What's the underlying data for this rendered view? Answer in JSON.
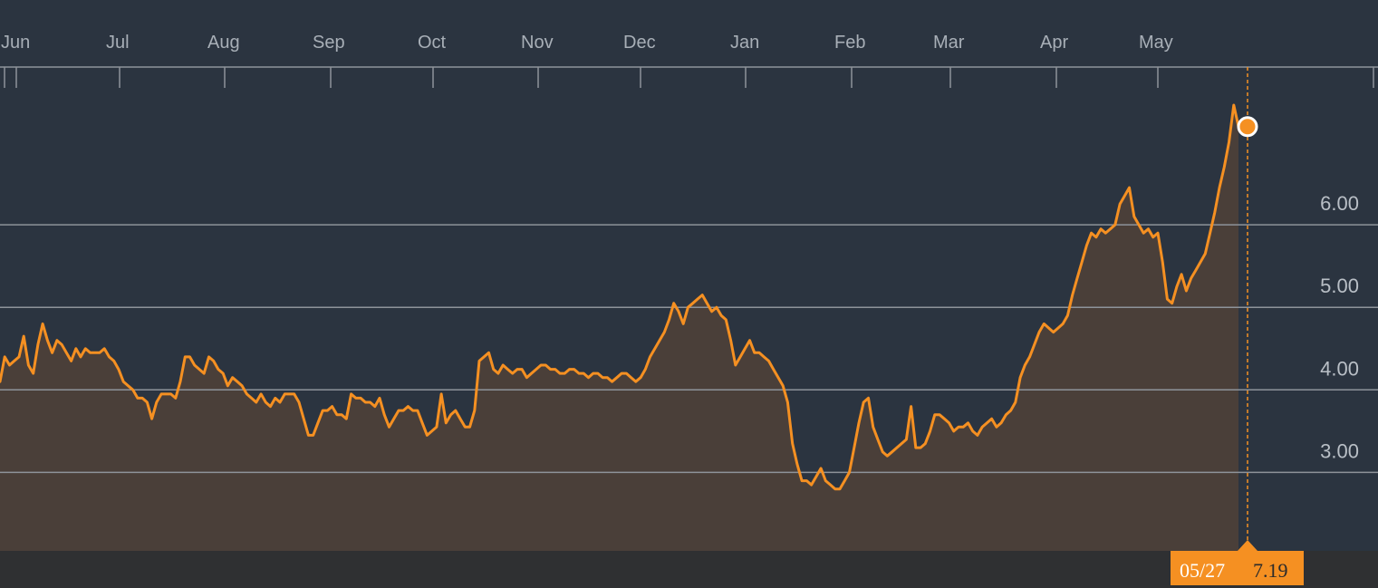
{
  "chart_data": {
    "type": "area",
    "x_tick_labels": [
      "Jun",
      "Jul",
      "Aug",
      "Sep",
      "Oct",
      "Nov",
      "Dec",
      "Jan",
      "Feb",
      "Mar",
      "Apr",
      "May"
    ],
    "y_tick_labels": [
      "6.00",
      "5.00",
      "4.00",
      "3.00"
    ],
    "y_ticks": [
      6,
      5,
      4,
      3
    ],
    "ylim": [
      2.05,
      7.9
    ],
    "grid": true,
    "series": [
      {
        "values": [
          4.1,
          4.4,
          4.3,
          4.35,
          4.4,
          4.65,
          4.3,
          4.2,
          4.55,
          4.8,
          4.6,
          4.45,
          4.6,
          4.55,
          4.45,
          4.35,
          4.5,
          4.4,
          4.5,
          4.45,
          4.45,
          4.45,
          4.5,
          4.4,
          4.35,
          4.25,
          4.1,
          4.05,
          4.0,
          3.9,
          3.9,
          3.85,
          3.65,
          3.85,
          3.95,
          3.95,
          3.95,
          3.9,
          4.1,
          4.4,
          4.4,
          4.3,
          4.25,
          4.2,
          4.4,
          4.35,
          4.25,
          4.2,
          4.05,
          4.15,
          4.1,
          4.05,
          3.95,
          3.9,
          3.85,
          3.95,
          3.85,
          3.8,
          3.9,
          3.85,
          3.95,
          3.95,
          3.95,
          3.85,
          3.65,
          3.45,
          3.45,
          3.6,
          3.75,
          3.75,
          3.8,
          3.7,
          3.7,
          3.65,
          3.95,
          3.9,
          3.9,
          3.85,
          3.85,
          3.8,
          3.9,
          3.7,
          3.55,
          3.65,
          3.75,
          3.75,
          3.8,
          3.75,
          3.75,
          3.6,
          3.45,
          3.5,
          3.55,
          3.95,
          3.6,
          3.7,
          3.75,
          3.65,
          3.55,
          3.55,
          3.75,
          4.35,
          4.4,
          4.45,
          4.25,
          4.2,
          4.3,
          4.25,
          4.2,
          4.25,
          4.25,
          4.15,
          4.2,
          4.25,
          4.3,
          4.3,
          4.25,
          4.25,
          4.2,
          4.2,
          4.25,
          4.25,
          4.2,
          4.2,
          4.15,
          4.2,
          4.2,
          4.15,
          4.15,
          4.1,
          4.15,
          4.2,
          4.2,
          4.15,
          4.1,
          4.15,
          4.25,
          4.4,
          4.5,
          4.6,
          4.7,
          4.85,
          5.05,
          4.95,
          4.8,
          5.0,
          5.05,
          5.1,
          5.15,
          5.05,
          4.95,
          5.0,
          4.9,
          4.85,
          4.6,
          4.3,
          4.4,
          4.5,
          4.6,
          4.45,
          4.45,
          4.4,
          4.35,
          4.25,
          4.15,
          4.05,
          3.85,
          3.35,
          3.1,
          2.9,
          2.9,
          2.85,
          2.95,
          3.05,
          2.9,
          2.85,
          2.8,
          2.8,
          2.9,
          3.0,
          3.3,
          3.6,
          3.85,
          3.9,
          3.55,
          3.4,
          3.25,
          3.2,
          3.25,
          3.3,
          3.35,
          3.4,
          3.8,
          3.3,
          3.3,
          3.35,
          3.5,
          3.7,
          3.7,
          3.65,
          3.6,
          3.5,
          3.55,
          3.55,
          3.6,
          3.5,
          3.45,
          3.55,
          3.6,
          3.65,
          3.55,
          3.6,
          3.7,
          3.75,
          3.85,
          4.15,
          4.3,
          4.4,
          4.55,
          4.7,
          4.8,
          4.75,
          4.7,
          4.75,
          4.8,
          4.9,
          5.15,
          5.35,
          5.55,
          5.75,
          5.9,
          5.85,
          5.95,
          5.9,
          5.95,
          6.0,
          6.25,
          6.35,
          6.45,
          6.1,
          6.0,
          5.9,
          5.95,
          5.85,
          5.9,
          5.55,
          5.1,
          5.05,
          5.25,
          5.4,
          5.2,
          5.35,
          5.45,
          5.55,
          5.65,
          5.9,
          6.15,
          6.45,
          6.7,
          7.0,
          7.45,
          7.19
        ]
      }
    ],
    "highlight": {
      "date": "05/27",
      "value": "7.19"
    },
    "colors": {
      "background": "#2b3440",
      "line": "#f59022",
      "area_fill": "#4a3f39",
      "grid": "#8e939a",
      "axis_band": "#2f3032",
      "tooltip_bg": "#f59022",
      "tooltip_text": "#ffffff",
      "tooltip_value": "#2b2b2b"
    }
  }
}
